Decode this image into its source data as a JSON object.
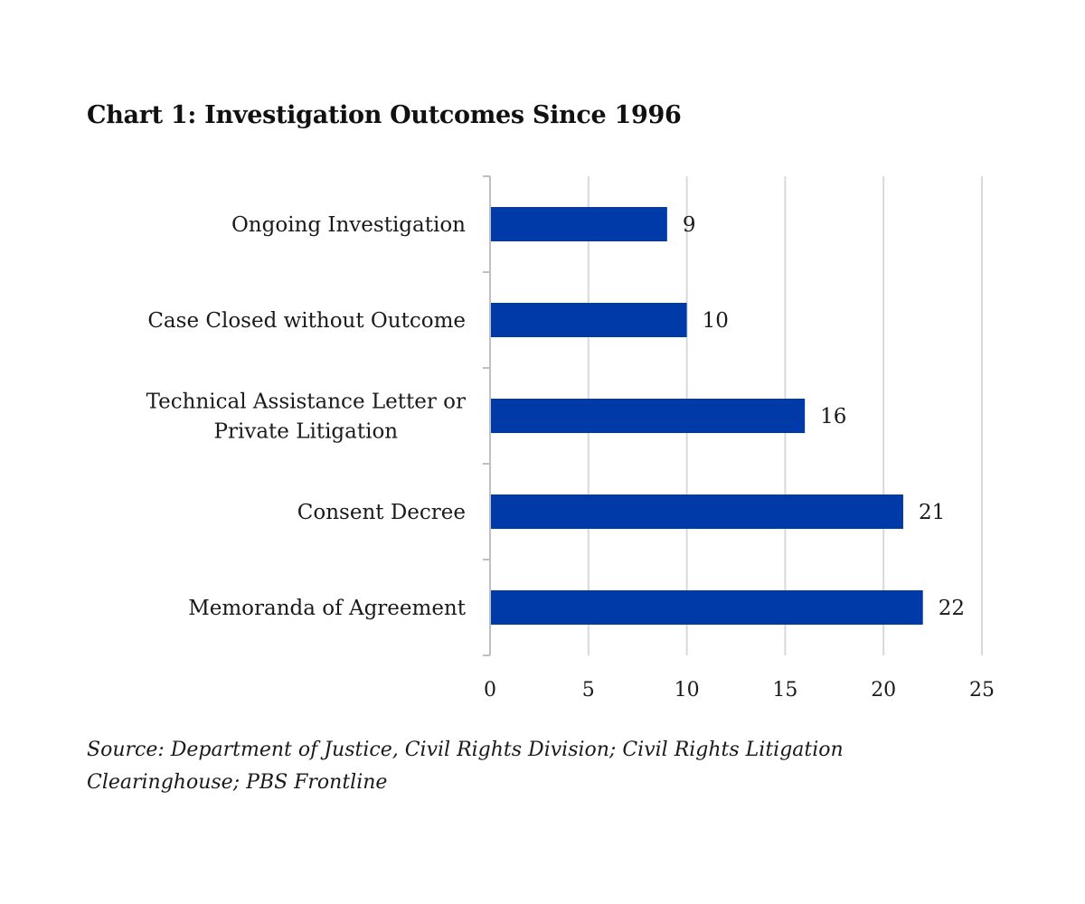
{
  "title": "Chart 1: Investigation Outcomes Since 1996",
  "source": "Source: Department of Justice, Civil Rights Division; Civil Rights Litigation Clearinghouse; PBS Frontline",
  "colors": {
    "bar": "#003AA8",
    "grid": "#D9D9D9",
    "axis": "#BFBFBF",
    "text": "#1a1a1a"
  },
  "chart_data": {
    "type": "bar",
    "orientation": "horizontal",
    "title": "Chart 1: Investigation Outcomes Since 1996",
    "categories": [
      [
        "Ongoing Investigation"
      ],
      [
        "Case Closed without Outcome"
      ],
      [
        "Technical Assistance Letter or",
        "Private Litigation"
      ],
      [
        "Consent Decree"
      ],
      [
        "Memoranda of Agreement"
      ]
    ],
    "values": [
      9,
      10,
      16,
      21,
      22
    ],
    "xlim": [
      0,
      25
    ],
    "xticks": [
      0,
      5,
      10,
      15,
      20,
      25
    ],
    "grid": true,
    "legend": "none",
    "data_labels": true
  }
}
